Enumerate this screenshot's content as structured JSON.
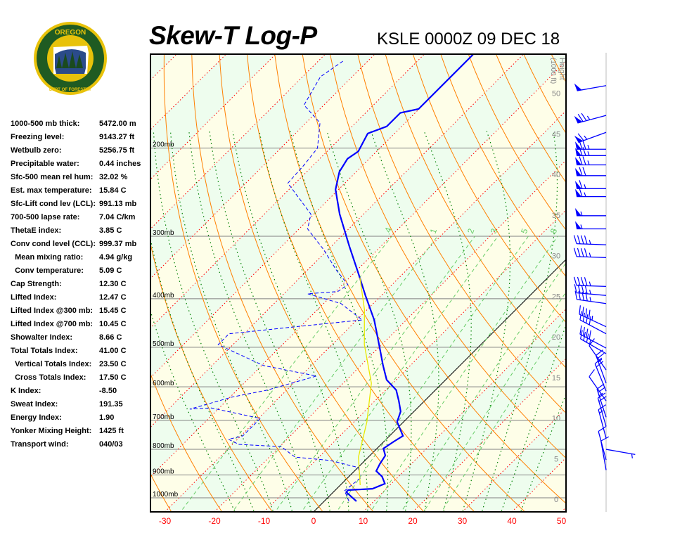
{
  "header": {
    "title": "Skew-T Log-P",
    "station": "KSLE 0000Z 09 DEC 18"
  },
  "logo": {
    "text_top": "OREGON",
    "text_bottom": "DEPARTMENT OF FORESTRY",
    "colors": {
      "ring": "#e8c20a",
      "field": "#1f5b22"
    }
  },
  "stats": [
    {
      "label": "1000-500 mb thick:",
      "value": "5472.00 m"
    },
    {
      "label": "Freezing level:",
      "value": "9143.27 ft"
    },
    {
      "label": "Wetbulb zero:",
      "value": "5256.75 ft"
    },
    {
      "label": "Precipitable water:",
      "value": "0.44 inches"
    },
    {
      "label": "Sfc-500 mean rel hum:",
      "value": "32.02 %"
    },
    {
      "label": "Est. max temperature:",
      "value": "15.84 C"
    },
    {
      "label": "Sfc-Lift cond lev (LCL):",
      "value": "991.13 mb"
    },
    {
      "label": "700-500 lapse rate:",
      "value": "7.04 C/km"
    },
    {
      "label": "ThetaE index:",
      "value": "3.85 C"
    },
    {
      "label": "Conv cond level (CCL):",
      "value": "999.37 mb"
    },
    {
      "label": "  Mean mixing ratio:",
      "value": "4.94 g/kg"
    },
    {
      "label": "  Conv temperature:",
      "value": "5.09 C"
    },
    {
      "label": "Cap Strength:",
      "value": "12.30 C"
    },
    {
      "label": "Lifted Index:",
      "value": "12.47 C"
    },
    {
      "label": "Lifted Index @300 mb:",
      "value": "15.45 C"
    },
    {
      "label": "Lifted Index @700 mb:",
      "value": "10.45 C"
    },
    {
      "label": "Showalter Index:",
      "value": "8.66 C"
    },
    {
      "label": "Total Totals Index:",
      "value": "41.00 C"
    },
    {
      "label": "  Vertical Totals Index:",
      "value": "23.50 C"
    },
    {
      "label": "  Cross Totals Index:",
      "value": "17.50 C"
    },
    {
      "label": "K Index:",
      "value": "-8.50"
    },
    {
      "label": "Sweat Index:",
      "value": "191.35"
    },
    {
      "label": "Energy Index:",
      "value": "1.90"
    },
    {
      "label": "Yonker Mixing Height:",
      "value": "1425 ft"
    },
    {
      "label": "Transport wind:",
      "value": "040/03"
    }
  ],
  "chart_data": {
    "type": "line",
    "subtype": "skew-t log-p",
    "x_unit": "C",
    "y_unit": "mb",
    "y_scale": "log",
    "xlim_bottom": [
      -34,
      50
    ],
    "ylim": [
      1067,
      130
    ],
    "x_ticks": [
      "-30",
      "-20",
      "-10",
      "0",
      "10",
      "20",
      "30",
      "40",
      "50"
    ],
    "x_tick_values": [
      -30,
      -20,
      -10,
      0,
      10,
      20,
      30,
      40,
      50
    ],
    "pressure_labels": [
      {
        "p": 200,
        "label": "200mb"
      },
      {
        "p": 300,
        "label": "300mb"
      },
      {
        "p": 400,
        "label": "400mb"
      },
      {
        "p": 500,
        "label": "500mb"
      },
      {
        "p": 600,
        "label": "600mb"
      },
      {
        "p": 700,
        "label": "700mb"
      },
      {
        "p": 800,
        "label": "800mb"
      },
      {
        "p": 900,
        "label": "900mb"
      },
      {
        "p": 1000,
        "label": "1000mb"
      }
    ],
    "height_axis": {
      "title": "Height",
      "unit": "(1000 ft)",
      "ticks": [
        "0",
        "5",
        "10",
        "15",
        "20",
        "25",
        "30",
        "35",
        "40",
        "45",
        "50"
      ],
      "tick_values": [
        0,
        5,
        10,
        15,
        20,
        25,
        30,
        35,
        40,
        45,
        50
      ]
    },
    "mixing_ratio_labels": [
      ".4",
      "1",
      "2",
      "3",
      "5",
      "8"
    ],
    "mixing_ratio_values": [
      0.4,
      1,
      2,
      3,
      5,
      8
    ],
    "colors": {
      "temperature": "#0000ff",
      "dewpoint": "#0000ff",
      "parcel": "#e8e800",
      "isotherm": "#ff0000",
      "dry_adiabat": "#ff8000",
      "moist_adiabat": "#008000",
      "mixing_ratio": "#66cc66",
      "isobar": "#808080",
      "band_a": "#fefee8",
      "band_b": "#eefdee",
      "wind": "#0000ff"
    },
    "series": [
      {
        "kind": "temperature",
        "points": [
          [
            1016,
            6.5
          ],
          [
            974,
            2.6
          ],
          [
            965,
            2.6
          ],
          [
            959,
            7.2
          ],
          [
            937,
            8.7
          ],
          [
            907,
            6.7
          ],
          [
            884,
            4.4
          ],
          [
            856,
            3.7
          ],
          [
            823,
            3.1
          ],
          [
            797,
            1.3
          ],
          [
            772,
            2.0
          ],
          [
            752,
            2.7
          ],
          [
            705,
            -1.3
          ],
          [
            672,
            -2.7
          ],
          [
            640,
            -5.2
          ],
          [
            609,
            -7.9
          ],
          [
            581,
            -11.9
          ],
          [
            544,
            -15.5
          ],
          [
            502,
            -19.7
          ],
          [
            441,
            -26.5
          ],
          [
            394,
            -33.2
          ],
          [
            357,
            -38.9
          ],
          [
            314,
            -46.4
          ],
          [
            271,
            -54.8
          ],
          [
            242,
            -60.6
          ],
          [
            223,
            -63.4
          ],
          [
            210,
            -64.4
          ],
          [
            203,
            -63.7
          ],
          [
            187,
            -65.4
          ],
          [
            181,
            -63.0
          ],
          [
            170,
            -63.0
          ],
          [
            167,
            -60.1
          ],
          [
            130,
            -60.1
          ]
        ]
      },
      {
        "kind": "dewpoint",
        "points": [
          [
            1016,
            5.0
          ],
          [
            968,
            2.0
          ],
          [
            913,
            2.6
          ],
          [
            870,
            0.1
          ],
          [
            842,
            -7.0
          ],
          [
            829,
            -14.8
          ],
          [
            790,
            -19.7
          ],
          [
            782,
            -28.7
          ],
          [
            764,
            -31.8
          ],
          [
            752,
            -29.6
          ],
          [
            694,
            -29.6
          ],
          [
            661,
            -41.7
          ],
          [
            665,
            -45.7
          ],
          [
            629,
            -39.6
          ],
          [
            609,
            -33.9
          ],
          [
            571,
            -26.8
          ],
          [
            544,
            -39.6
          ],
          [
            494,
            -53.0
          ],
          [
            470,
            -53.0
          ],
          [
            455,
            -41.0
          ],
          [
            441,
            -28.9
          ],
          [
            409,
            -36.5
          ],
          [
            391,
            -45.2
          ],
          [
            387,
            -39.6
          ],
          [
            375,
            -38.9
          ],
          [
            351,
            -44.1
          ],
          [
            319,
            -50.9
          ],
          [
            290,
            -58.3
          ],
          [
            271,
            -60.6
          ],
          [
            235,
            -71.5
          ],
          [
            216,
            -71.9
          ],
          [
            200,
            -72.6
          ],
          [
            178,
            -77.2
          ],
          [
            164,
            -84.0
          ],
          [
            144,
            -86.4
          ],
          [
            134,
            -85.0
          ]
        ]
      },
      {
        "kind": "parcel",
        "points": [
          [
            943,
            4.0
          ],
          [
            829,
            -2.0
          ],
          [
            705,
            -7.4
          ],
          [
            590,
            -14.3
          ],
          [
            494,
            -23.5
          ],
          [
            420,
            -30.6
          ],
          [
            363,
            -37.9
          ]
        ]
      }
    ],
    "winds": [
      {
        "p": 150,
        "dir": 260,
        "kt": 50
      },
      {
        "p": 172,
        "dir": 255,
        "kt": 75
      },
      {
        "p": 186,
        "dir": 250,
        "kt": 65
      },
      {
        "p": 201,
        "dir": 270,
        "kt": 75
      },
      {
        "p": 207,
        "dir": 270,
        "kt": 75
      },
      {
        "p": 216,
        "dir": 270,
        "kt": 75
      },
      {
        "p": 227,
        "dir": 270,
        "kt": 70
      },
      {
        "p": 241,
        "dir": 270,
        "kt": 65
      },
      {
        "p": 250,
        "dir": 270,
        "kt": 65
      },
      {
        "p": 273,
        "dir": 270,
        "kt": 55
      },
      {
        "p": 290,
        "dir": 270,
        "kt": 55
      },
      {
        "p": 312,
        "dir": 272,
        "kt": 45
      },
      {
        "p": 331,
        "dir": 272,
        "kt": 45
      },
      {
        "p": 378,
        "dir": 272,
        "kt": 45
      },
      {
        "p": 394,
        "dir": 275,
        "kt": 45
      },
      {
        "p": 409,
        "dir": 278,
        "kt": 45
      },
      {
        "p": 455,
        "dir": 295,
        "kt": 45
      },
      {
        "p": 470,
        "dir": 298,
        "kt": 40
      },
      {
        "p": 502,
        "dir": 298,
        "kt": 40
      },
      {
        "p": 515,
        "dir": 300,
        "kt": 35
      },
      {
        "p": 555,
        "dir": 325,
        "kt": 10
      },
      {
        "p": 590,
        "dir": 340,
        "kt": 25
      },
      {
        "p": 612,
        "dir": 338,
        "kt": 20
      },
      {
        "p": 640,
        "dir": 325,
        "kt": 10
      },
      {
        "p": 690,
        "dir": 342,
        "kt": 25
      },
      {
        "p": 720,
        "dir": 344,
        "kt": 20
      },
      {
        "p": 760,
        "dir": 345,
        "kt": 15
      },
      {
        "p": 800,
        "dir": 100,
        "kt": 5
      },
      {
        "p": 840,
        "dir": 345,
        "kt": 10
      },
      {
        "p": 880,
        "dir": 350,
        "kt": 10
      }
    ]
  }
}
